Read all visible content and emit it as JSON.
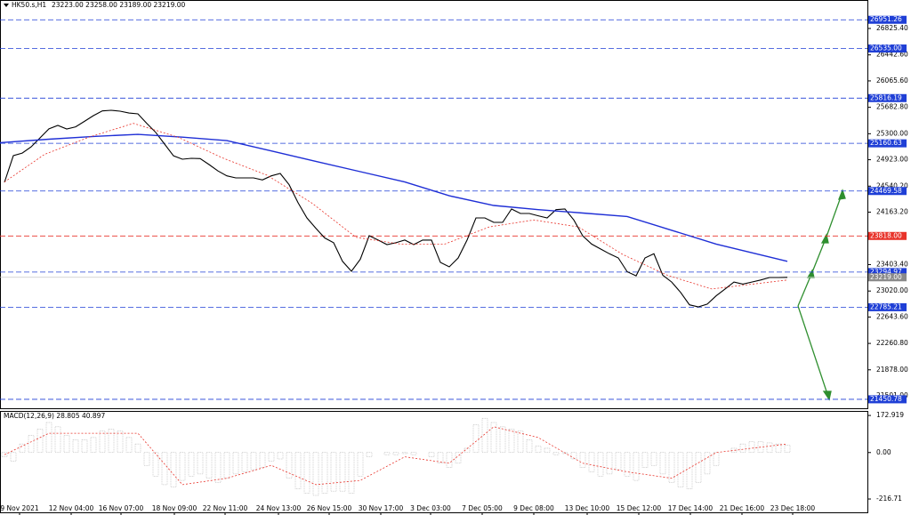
{
  "chart_data": [
    {
      "type": "candlestick-line",
      "symbol": "HK50.s,H1",
      "ohlc_text": "23223.00 23258.00 23189.00 23219.00",
      "xlim": [
        -0.5,
        97
      ],
      "ylim": [
        21308,
        27238
      ],
      "xticks": [
        {
          "value": 1.7,
          "label": "9 Nov 2021"
        },
        {
          "value": 7.5,
          "label": "12 Nov 04:00"
        },
        {
          "value": 13.1,
          "label": "16 Nov 07:00"
        },
        {
          "value": 19.1,
          "label": "18 Nov 09:00"
        },
        {
          "value": 24.8,
          "label": "22 Nov 11:00"
        },
        {
          "value": 30.8,
          "label": "24 Nov 13:00"
        },
        {
          "value": 36.5,
          "label": "26 Nov 15:00"
        },
        {
          "value": 42.3,
          "label": "30 Nov 17:00"
        },
        {
          "value": 47.9,
          "label": "3 Dec 03:00"
        },
        {
          "value": 53.7,
          "label": "7 Dec 05:00"
        },
        {
          "value": 59.5,
          "label": "9 Dec 08:00"
        },
        {
          "value": 65.5,
          "label": "13 Dec 10:00"
        },
        {
          "value": 71.3,
          "label": "15 Dec 12:00"
        },
        {
          "value": 77.1,
          "label": "17 Dec 14:00"
        },
        {
          "value": 82.9,
          "label": "21 Dec 16:00"
        },
        {
          "value": 88.6,
          "label": "23 Dec 18:00"
        }
      ],
      "yticks": [
        {
          "value": 26825.4,
          "label": "26825.40"
        },
        {
          "value": 26442.6,
          "label": "26442.60"
        },
        {
          "value": 26065.6,
          "label": "26065.60"
        },
        {
          "value": 25682.8,
          "label": "25682.80"
        },
        {
          "value": 25300,
          "label": "25300.00"
        },
        {
          "value": 24923,
          "label": "24923.00"
        },
        {
          "value": 24540.2,
          "label": "24540.20"
        },
        {
          "value": 24163.2,
          "label": "24163.20"
        },
        {
          "value": 23403.4,
          "label": "23403.40"
        },
        {
          "value": 23020,
          "label": "23020.00"
        },
        {
          "value": 22643.6,
          "label": "22643.60"
        },
        {
          "value": 22260.8,
          "label": "22260.80"
        },
        {
          "value": 21878,
          "label": "21878.00"
        },
        {
          "value": 21501,
          "label": "21501.00"
        }
      ],
      "levels": [
        {
          "value": 26951.26,
          "label": "26951.26",
          "color": "#1f3fd6"
        },
        {
          "value": 26535,
          "label": "26535.00",
          "color": "#1f3fd6"
        },
        {
          "value": 25816.19,
          "label": "25816.19",
          "color": "#1f3fd6"
        },
        {
          "value": 25160.63,
          "label": "25160.63",
          "color": "#1f3fd6"
        },
        {
          "value": 24469.58,
          "label": "24469.58",
          "color": "#1f3fd6"
        },
        {
          "value": 23818,
          "label": "23818.00",
          "color": "#e8332a"
        },
        {
          "value": 23294.97,
          "label": "23294.97",
          "color": "#1f3fd6"
        },
        {
          "value": 22785.21,
          "label": "22785.21",
          "color": "#1f3fd6"
        },
        {
          "value": 21450.78,
          "label": "21450.78",
          "color": "#1f3fd6"
        }
      ],
      "current": {
        "value": 23219,
        "label": "23219.00",
        "color": "#8a8a8a"
      },
      "series": [
        {
          "color": "#000000",
          "values": [
            24595,
            24982,
            25020,
            25110,
            25240,
            25370,
            25420,
            25369,
            25400,
            25480,
            25562,
            25630,
            25640,
            25627,
            25600,
            25588,
            25450,
            25320,
            25150,
            24980,
            24930,
            24943,
            24940,
            24853,
            24760,
            24690,
            24660,
            24660,
            24660,
            24630,
            24690,
            24724,
            24560,
            24300,
            24080,
            23930,
            23790,
            23720,
            23450,
            23306,
            23480,
            23822,
            23758,
            23693,
            23720,
            23758,
            23693,
            23758,
            23758,
            23435,
            23371,
            23500,
            23758,
            24080,
            24080,
            24015,
            24015,
            24209,
            24144,
            24144,
            24110,
            24080,
            24200,
            24210,
            24050,
            23820,
            23700,
            23630,
            23560,
            23500,
            23300,
            23240,
            23500,
            23560,
            23250,
            23150,
            23000,
            22820,
            22791,
            22830,
            22950,
            23050,
            23150,
            23120,
            23150,
            23180,
            23216,
            23216,
            23219
          ]
        },
        {
          "color": "#1f2fd6",
          "x": [
            -0.5,
            5,
            10,
            15,
            20,
            25,
            30,
            35,
            40,
            45,
            50,
            55,
            60,
            65,
            70,
            75,
            80,
            88
          ],
          "values": [
            25170,
            25220,
            25260,
            25290,
            25250,
            25200,
            25050,
            24900,
            24750,
            24600,
            24400,
            24260,
            24200,
            24150,
            24100,
            23900,
            23700,
            23450
          ]
        },
        {
          "color": "#e8332a",
          "x": [
            0,
            4.5,
            9.5,
            14.5,
            19.5,
            24.5,
            29.5,
            34.5,
            39.5,
            44.5,
            49.5,
            54.5,
            59.5,
            64.5,
            69.5,
            74.5,
            79.5,
            88
          ],
          "values": [
            24600,
            25000,
            25250,
            25450,
            25250,
            24950,
            24700,
            24300,
            23800,
            23700,
            23700,
            23950,
            24050,
            23950,
            23550,
            23250,
            23050,
            23180
          ]
        }
      ]
    },
    {
      "type": "macd",
      "label": "MACD(12,26,9) 28.805 40.897",
      "xlim": [
        -0.5,
        97
      ],
      "ylim": [
        -283,
        194
      ],
      "yticks": [
        {
          "value": 172.919,
          "label": "172.919"
        },
        {
          "value": 0,
          "label": "0.00"
        },
        {
          "value": -216.71,
          "label": "-216.71"
        }
      ],
      "series": [
        {
          "color": "#888888",
          "values": [
            -20,
            -40,
            40,
            80,
            110,
            140,
            120,
            80,
            60,
            60,
            70,
            100,
            110,
            100,
            70,
            40,
            -60,
            -110,
            -150,
            -160,
            -130,
            -110,
            -100,
            -120,
            -140,
            -120,
            -100,
            -90,
            -80,
            -70,
            -40,
            -30,
            -120,
            -170,
            -190,
            -200,
            -190,
            -180,
            -180,
            -190,
            -110,
            -20,
            0,
            -10,
            -10,
            -5,
            -10,
            0,
            -20,
            -50,
            -70,
            -50,
            20,
            130,
            160,
            140,
            120,
            110,
            100,
            60,
            30,
            20,
            -10,
            -5,
            -30,
            -70,
            -90,
            -110,
            -100,
            -80,
            -110,
            -130,
            -70,
            -60,
            -100,
            -140,
            -160,
            -170,
            -140,
            -100,
            -60,
            0,
            20,
            40,
            50,
            50,
            45,
            40,
            35
          ]
        },
        {
          "color": "#e8332a",
          "x": [
            0,
            5,
            10,
            15,
            20,
            25,
            30,
            35,
            40,
            45,
            50,
            55,
            60,
            65,
            70,
            75,
            80,
            88
          ],
          "values": [
            -10,
            90,
            90,
            90,
            -150,
            -120,
            -60,
            -150,
            -130,
            -20,
            -50,
            120,
            70,
            -50,
            -90,
            -120,
            0,
            40
          ]
        }
      ]
    }
  ]
}
